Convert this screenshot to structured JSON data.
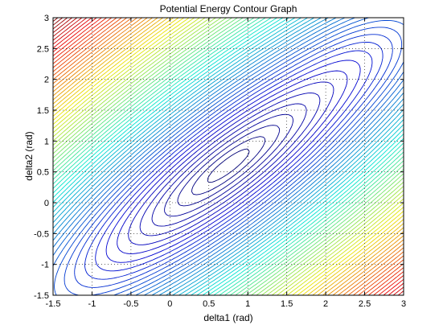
{
  "chart_data": {
    "type": "contour",
    "title": "Potential Energy Contour Graph",
    "xlabel": "delta1 (rad)",
    "ylabel": "delta2 (rad)",
    "xlim": [
      -1.5,
      3
    ],
    "ylim": [
      -1.5,
      3
    ],
    "xticks": [
      -1.5,
      -1,
      -0.5,
      0,
      0.5,
      1,
      1.5,
      2,
      2.5,
      3
    ],
    "yticks": [
      -1.5,
      -1,
      -0.5,
      0,
      0.5,
      1,
      1.5,
      2,
      2.5,
      3
    ],
    "xtick_labels": [
      "-1.5",
      "-1",
      "-0.5",
      "0",
      "0.5",
      "1",
      "1.5",
      "2",
      "2.5",
      "3"
    ],
    "ytick_labels": [
      "-1.5",
      "-1",
      "-0.5",
      "0",
      "0.5",
      "1",
      "1.5",
      "2",
      "2.5",
      "3"
    ],
    "grid": true,
    "grid_style": "dotted",
    "colormap": "jet",
    "minimum": {
      "x": 0.75,
      "y": 0.6
    },
    "levels": 70,
    "colors": {
      "low": "#00008f",
      "mid": "#00d4d4",
      "upper": "#e6e66a",
      "high": "#800000"
    }
  }
}
